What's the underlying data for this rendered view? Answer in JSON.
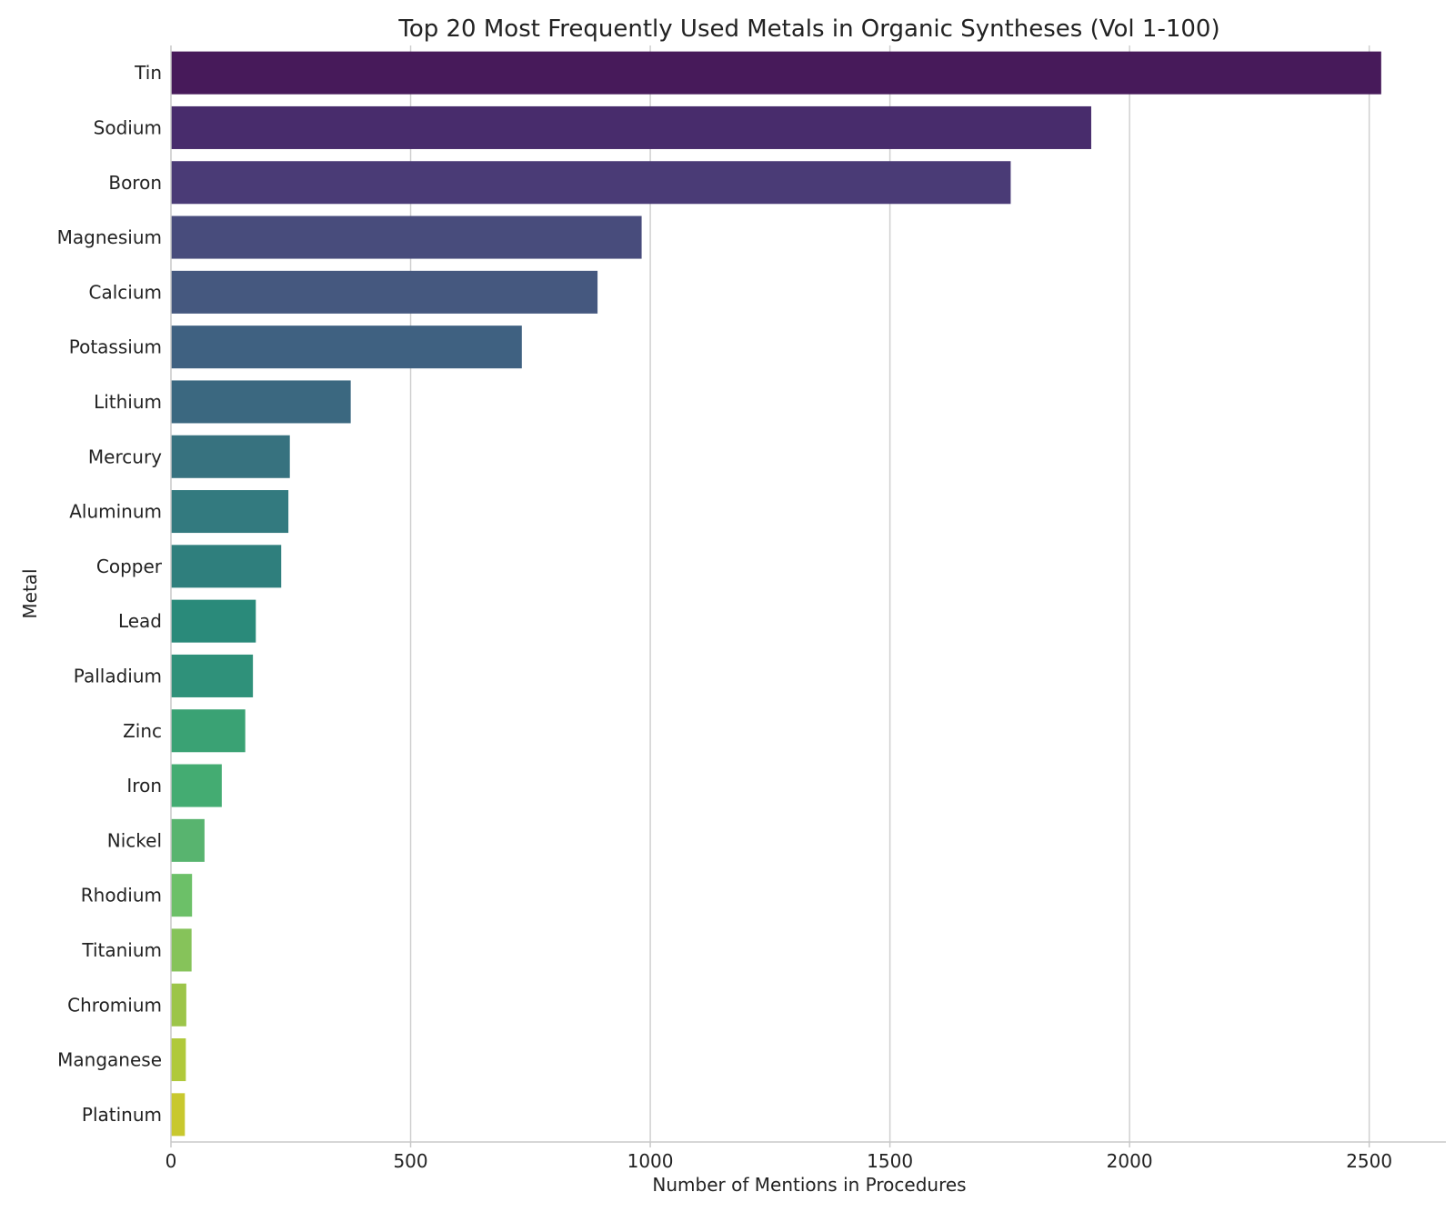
{
  "chart_data": {
    "type": "bar",
    "orientation": "horizontal",
    "title": "Top 20 Most Frequently Used Metals in Organic Syntheses (Vol 1-100)",
    "xlabel": "Number of Mentions in Procedures",
    "ylabel": "Metal",
    "xlim": [
      0,
      2660
    ],
    "xticks": [
      0,
      500,
      1000,
      1500,
      2000,
      2500
    ],
    "grid": "x",
    "categories": [
      "Tin",
      "Sodium",
      "Boron",
      "Magnesium",
      "Calcium",
      "Potassium",
      "Lithium",
      "Mercury",
      "Aluminum",
      "Copper",
      "Lead",
      "Palladium",
      "Zinc",
      "Iron",
      "Nickel",
      "Rhodium",
      "Titanium",
      "Chromium",
      "Manganese",
      "Platinum"
    ],
    "values": [
      2525,
      1920,
      1752,
      982,
      890,
      732,
      375,
      248,
      245,
      230,
      177,
      171,
      155,
      106,
      70,
      44,
      43,
      32,
      31,
      29
    ],
    "colors": [
      "#471a5a",
      "#482c6c",
      "#4a3b76",
      "#484c7c",
      "#45587f",
      "#3f6181",
      "#3b6880",
      "#37727f",
      "#337a7f",
      "#2f7f7d",
      "#2a8a7a",
      "#2f917a",
      "#3aa274",
      "#44ac72",
      "#58b46f",
      "#6cc068",
      "#86c35a",
      "#9cc549",
      "#b0c93b",
      "#c8c82e"
    ]
  }
}
